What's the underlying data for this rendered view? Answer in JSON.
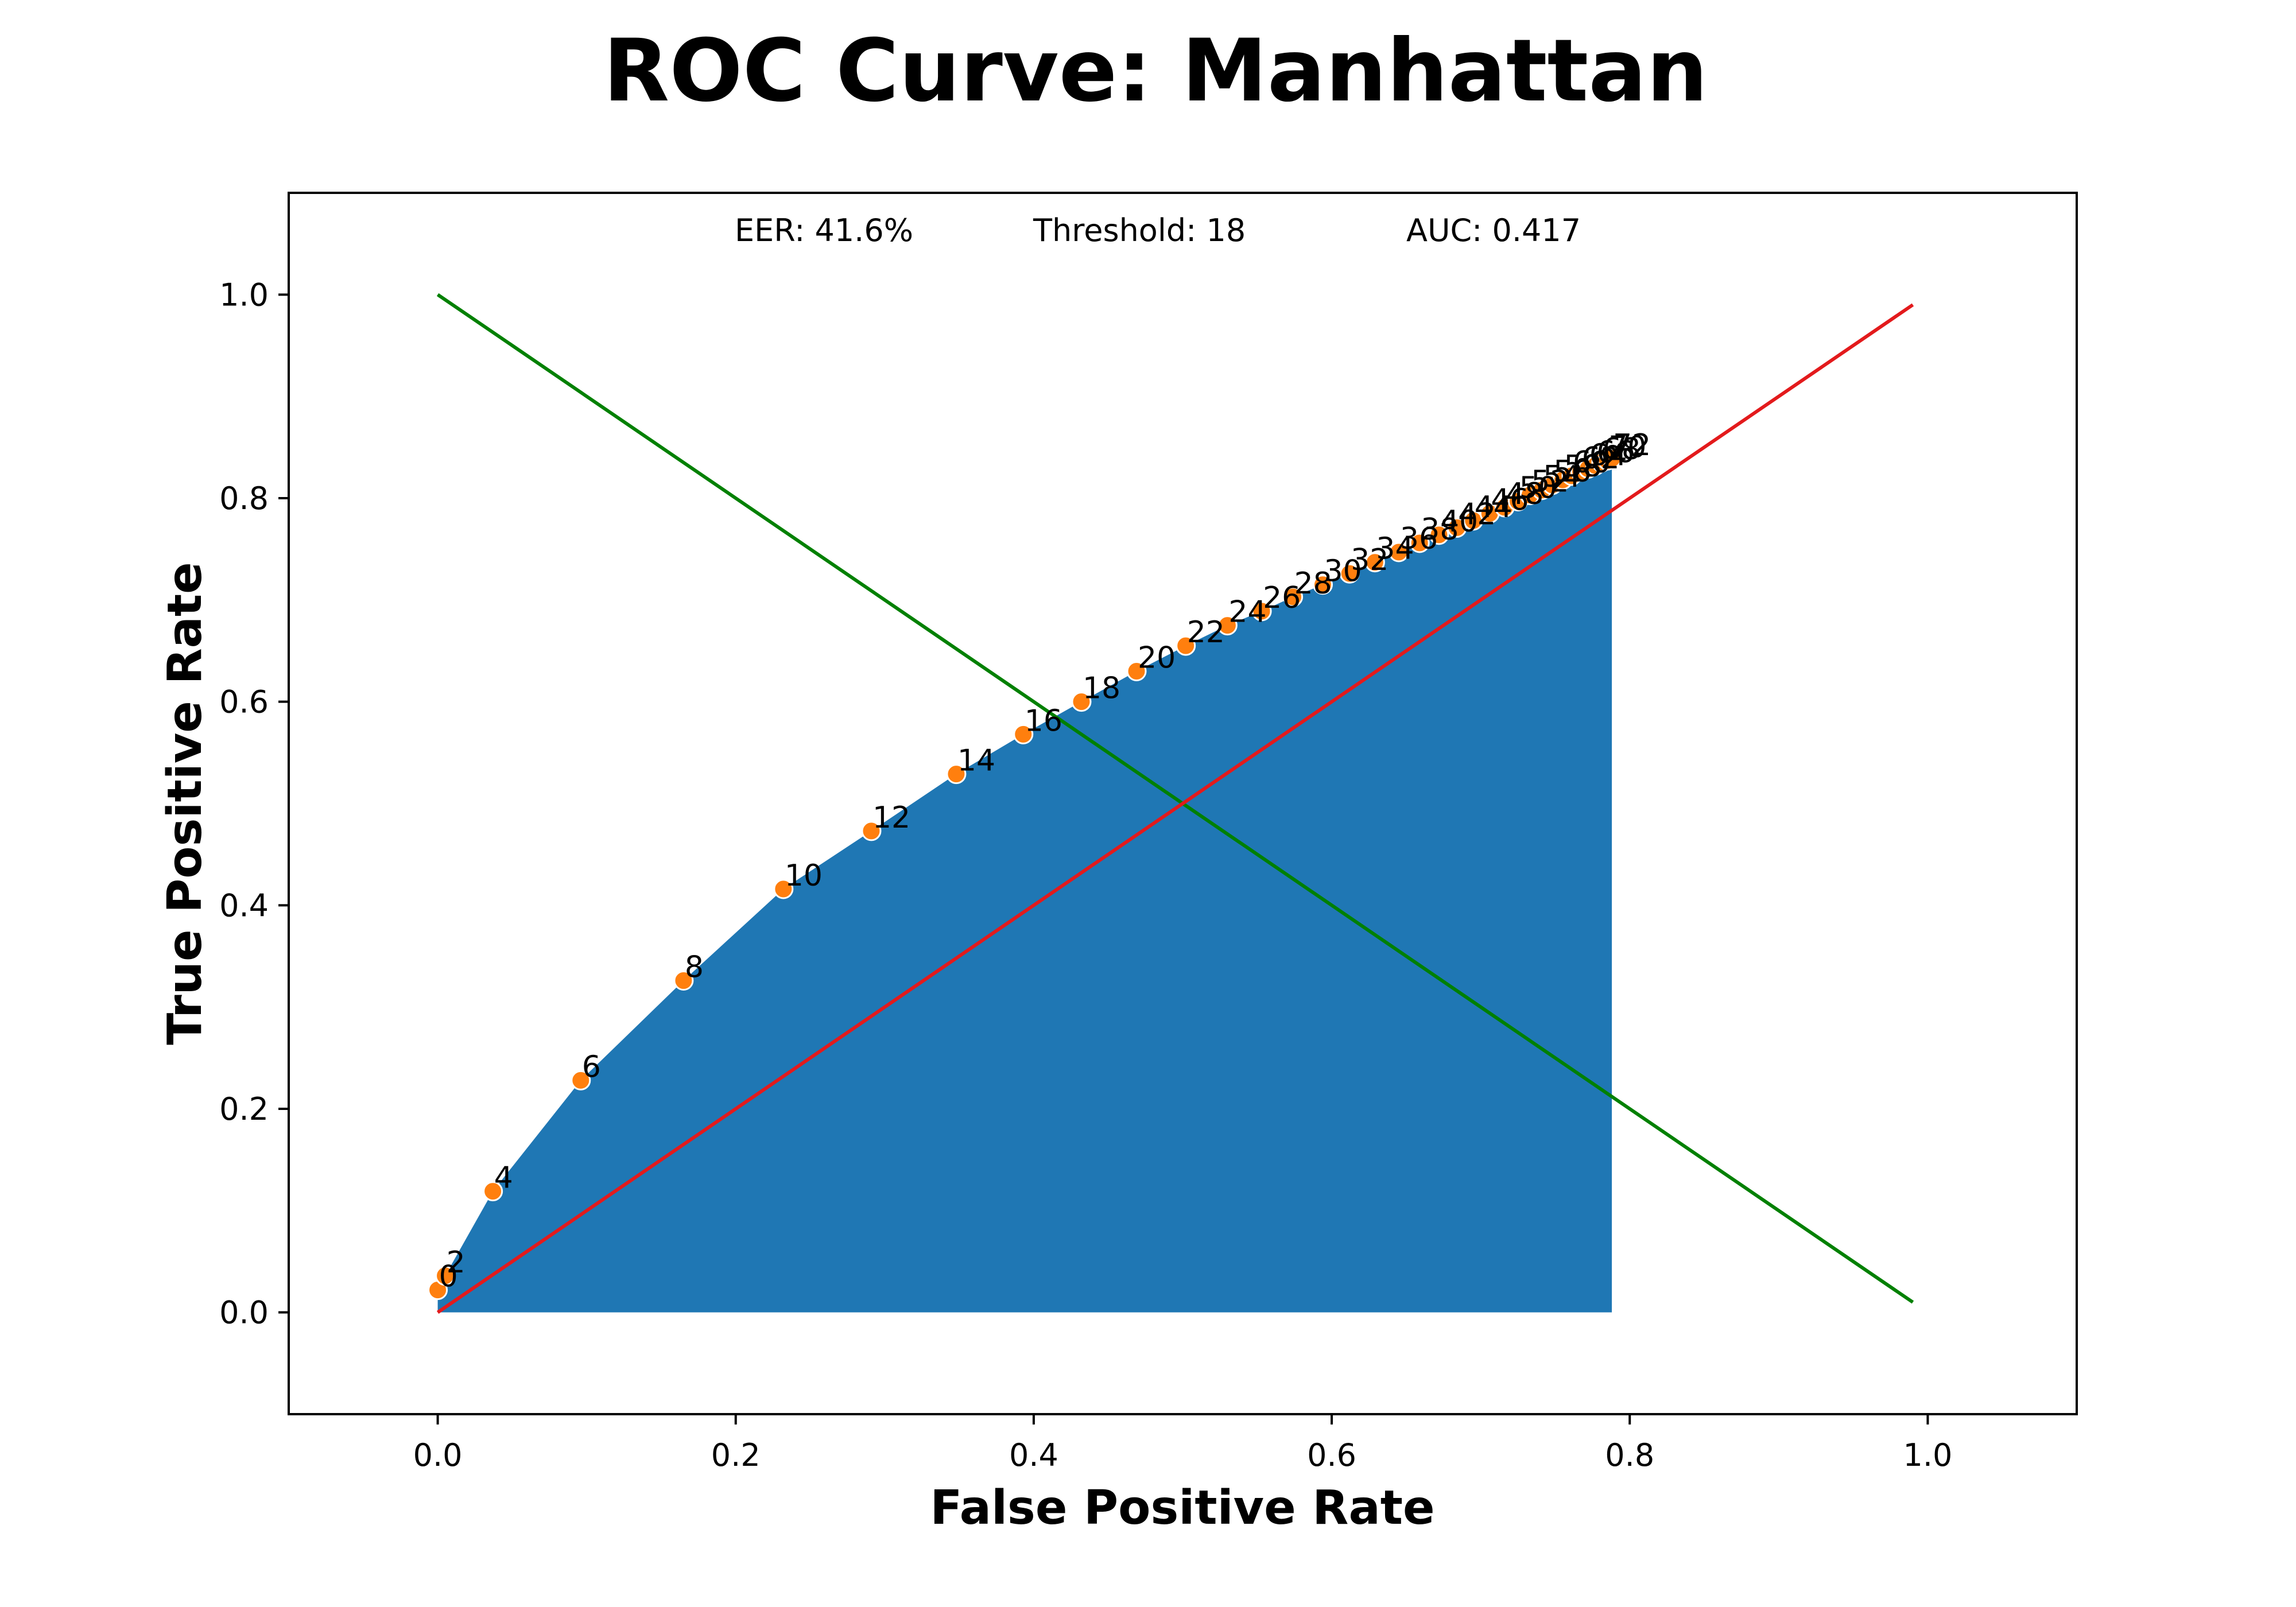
{
  "chart_data": {
    "type": "line",
    "title": "ROC Curve: Manhattan",
    "xlabel": "False Positive Rate",
    "ylabel": "True Positive Rate",
    "xlim": [
      -0.1,
      1.1
    ],
    "ylim": [
      -0.1,
      1.1
    ],
    "xticks": [
      "0.0",
      "0.2",
      "0.4",
      "0.6",
      "0.8",
      "1.0"
    ],
    "yticks": [
      "0.0",
      "0.2",
      "0.4",
      "0.6",
      "0.8",
      "1.0"
    ],
    "grid": false,
    "annotations": {
      "eer": "EER: 41.6%",
      "threshold": "Threshold: 18",
      "auc": "AUC: 0.417"
    },
    "colors": {
      "area": "#1f77b4",
      "points": "#ff7f0e",
      "diagonal": "#e31a1c",
      "anti_diagonal": "#008000"
    },
    "lines": {
      "diagonal": {
        "x": [
          0.0,
          0.99
        ],
        "y": [
          0.0,
          0.99
        ]
      },
      "anti_diagonal": {
        "x": [
          0.0,
          0.99
        ],
        "y": [
          1.0,
          0.01
        ]
      }
    },
    "points": [
      {
        "label": "0",
        "x": 0.0,
        "y": 0.022
      },
      {
        "label": "2",
        "x": 0.005,
        "y": 0.036
      },
      {
        "label": "4",
        "x": 0.037,
        "y": 0.119
      },
      {
        "label": "6",
        "x": 0.096,
        "y": 0.228
      },
      {
        "label": "8",
        "x": 0.165,
        "y": 0.326
      },
      {
        "label": "10",
        "x": 0.232,
        "y": 0.416
      },
      {
        "label": "12",
        "x": 0.291,
        "y": 0.473
      },
      {
        "label": "14",
        "x": 0.348,
        "y": 0.529
      },
      {
        "label": "16",
        "x": 0.393,
        "y": 0.568
      },
      {
        "label": "18",
        "x": 0.432,
        "y": 0.6
      },
      {
        "label": "20",
        "x": 0.469,
        "y": 0.63
      },
      {
        "label": "22",
        "x": 0.502,
        "y": 0.655
      },
      {
        "label": "24",
        "x": 0.53,
        "y": 0.675
      },
      {
        "label": "26",
        "x": 0.553,
        "y": 0.689
      },
      {
        "label": "28",
        "x": 0.574,
        "y": 0.703
      },
      {
        "label": "30",
        "x": 0.594,
        "y": 0.715
      },
      {
        "label": "32",
        "x": 0.612,
        "y": 0.726
      },
      {
        "label": "34",
        "x": 0.629,
        "y": 0.737
      },
      {
        "label": "36",
        "x": 0.645,
        "y": 0.747
      },
      {
        "label": "38",
        "x": 0.659,
        "y": 0.756
      },
      {
        "label": "40",
        "x": 0.672,
        "y": 0.764
      },
      {
        "label": "42",
        "x": 0.684,
        "y": 0.771
      },
      {
        "label": "44",
        "x": 0.695,
        "y": 0.778
      },
      {
        "label": "46",
        "x": 0.706,
        "y": 0.785
      },
      {
        "label": "48",
        "x": 0.716,
        "y": 0.791
      },
      {
        "label": "50",
        "x": 0.725,
        "y": 0.797
      },
      {
        "label": "52",
        "x": 0.733,
        "y": 0.803
      },
      {
        "label": "54",
        "x": 0.741,
        "y": 0.808
      },
      {
        "label": "56",
        "x": 0.748,
        "y": 0.813
      },
      {
        "label": "58",
        "x": 0.755,
        "y": 0.818
      },
      {
        "label": "60",
        "x": 0.761,
        "y": 0.822
      },
      {
        "label": "62",
        "x": 0.767,
        "y": 0.826
      },
      {
        "label": "64",
        "x": 0.772,
        "y": 0.829
      },
      {
        "label": "66",
        "x": 0.777,
        "y": 0.832
      },
      {
        "label": "68",
        "x": 0.781,
        "y": 0.835
      },
      {
        "label": "70",
        "x": 0.785,
        "y": 0.837
      },
      {
        "label": "72",
        "x": 0.788,
        "y": 0.839
      }
    ]
  }
}
